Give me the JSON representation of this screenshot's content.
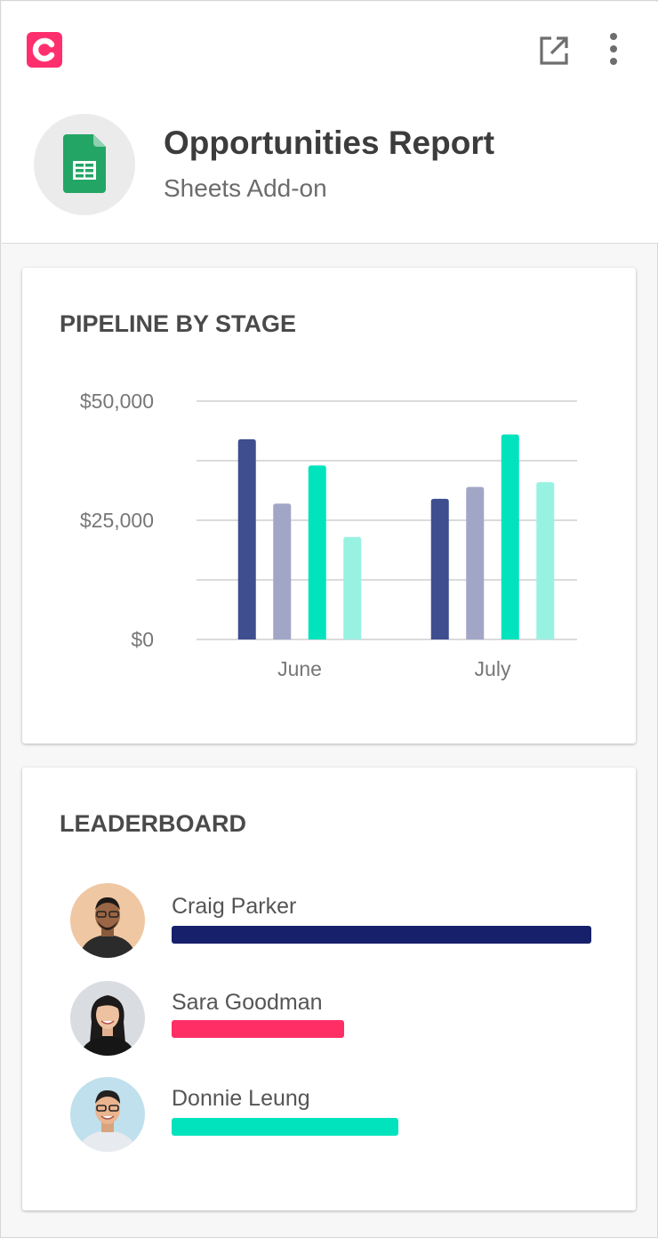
{
  "header": {
    "title": "Opportunities Report",
    "subtitle": "Sheets Add-on",
    "brand_icon": "brand-logo-icon",
    "brand_color": "#ff2f6e",
    "app_icon": "google-sheets-icon",
    "actions": [
      {
        "icon": "open-in-new-icon"
      },
      {
        "icon": "more-vert-icon"
      }
    ]
  },
  "pipeline": {
    "heading": "PIPELINE BY STAGE"
  },
  "chart_data": {
    "type": "bar",
    "categories": [
      "June",
      "July"
    ],
    "series": [
      {
        "color": "#3f4e8f",
        "values": [
          42000,
          29500
        ]
      },
      {
        "color": "#a2a6c6",
        "values": [
          28500,
          32000
        ]
      },
      {
        "color": "#00e3bd",
        "values": [
          36500,
          43000
        ]
      },
      {
        "color": "#98f2e2",
        "values": [
          21500,
          33000
        ]
      }
    ],
    "ylim": [
      0,
      50000
    ],
    "yticks": [
      0,
      12500,
      25000,
      37500,
      50000
    ],
    "ytick_labels": [
      "$0",
      "",
      "$25,000",
      "",
      "$50,000"
    ],
    "grid": true,
    "legend": "none"
  },
  "leaderboard": {
    "heading": "LEADERBOARD",
    "entries": [
      {
        "name": "Craig Parker",
        "value": 1.0,
        "color": "#17206a",
        "avatar": "avatar-craig-parker"
      },
      {
        "name": "Sara Goodman",
        "value": 0.41,
        "color": "#ff2f66",
        "avatar": "avatar-sara-goodman"
      },
      {
        "name": "Donnie Leung",
        "value": 0.54,
        "color": "#00e3bd",
        "avatar": "avatar-donnie-leung"
      }
    ]
  }
}
